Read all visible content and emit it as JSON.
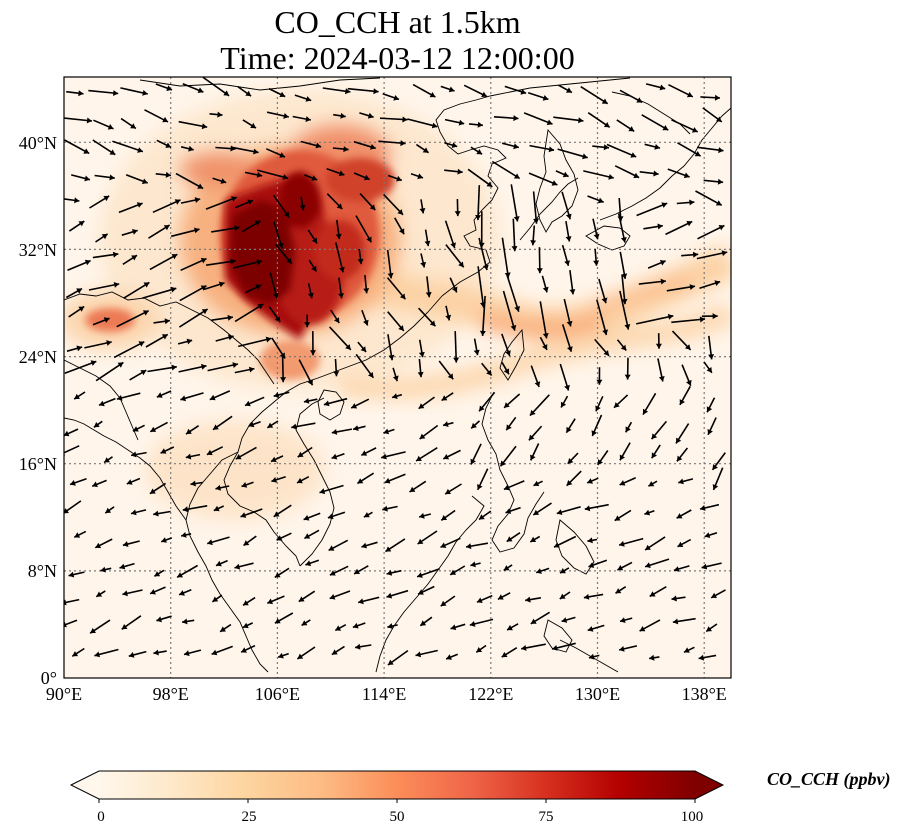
{
  "title": {
    "line1": "CO_CCH at 1.5km",
    "line2": "Time: 2024-03-12 12:00:00"
  },
  "map": {
    "lon_range": [
      90,
      140
    ],
    "lat_range": [
      0,
      44
    ],
    "lon_ticks": [
      "90°E",
      "98°E",
      "106°E",
      "114°E",
      "122°E",
      "130°E",
      "138°E"
    ],
    "lat_ticks": [
      "0°",
      "8°N",
      "16°N",
      "24°N",
      "32°N",
      "40°N"
    ],
    "gridlines": true,
    "field_variable": "CO_CCH",
    "field_colormap": "OrRd",
    "wind_vectors": true
  },
  "colorbar": {
    "label": "CO_CCH (ppbv)",
    "ticks": [
      "0",
      "25",
      "50",
      "75",
      "100"
    ],
    "range": [
      0,
      100
    ],
    "extend": "both",
    "colors": [
      "#fff7ec",
      "#fee8c8",
      "#fdd49e",
      "#fdbb84",
      "#fc8d59",
      "#ef6548",
      "#d7301f",
      "#b30000",
      "#7f0000"
    ]
  }
}
